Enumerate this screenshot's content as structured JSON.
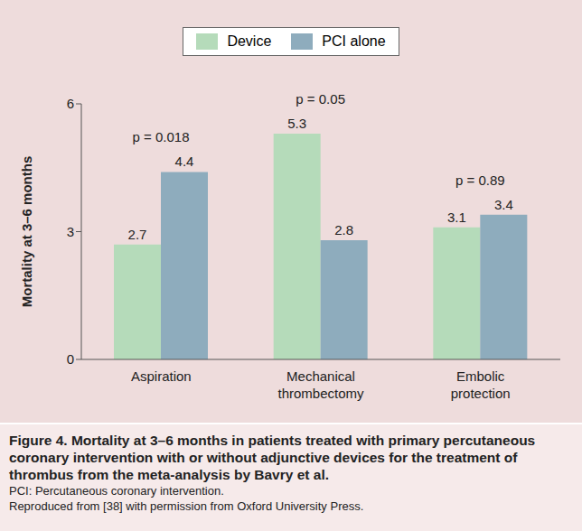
{
  "chart_data": {
    "type": "bar",
    "title": "Figure 4. Mortality at 3–6 months in patients treated with primary percutaneous coronary intervention with or without adjunctive devices for the treatment of thrombus from the meta-analysis by Bavry et al.",
    "notes": [
      "PCI: Percutaneous coronary intervention.",
      "Reproduced from [38] with permission from Oxford University Press."
    ],
    "y_label": "Mortality at 3–6 months",
    "categories": [
      "Aspiration",
      "Mechanical thrombectomy",
      "Embolic protection"
    ],
    "series": [
      {
        "name": "Device",
        "color": "#b5dbba",
        "values": [
          2.7,
          5.3,
          3.1
        ]
      },
      {
        "name": "PCI alone",
        "color": "#8eacbd",
        "values": [
          4.4,
          2.8,
          3.4
        ]
      }
    ],
    "annotations": [
      {
        "category": "Aspiration",
        "text": "p = 0.018"
      },
      {
        "category": "Mechanical thrombectomy",
        "text": "p = 0.05"
      },
      {
        "category": "Embolic protection",
        "text": "p = 0.89"
      }
    ],
    "ylim": [
      0,
      6
    ],
    "yticks": [
      0,
      3,
      6
    ],
    "grid": false,
    "data_labels": true,
    "legend": "top"
  }
}
